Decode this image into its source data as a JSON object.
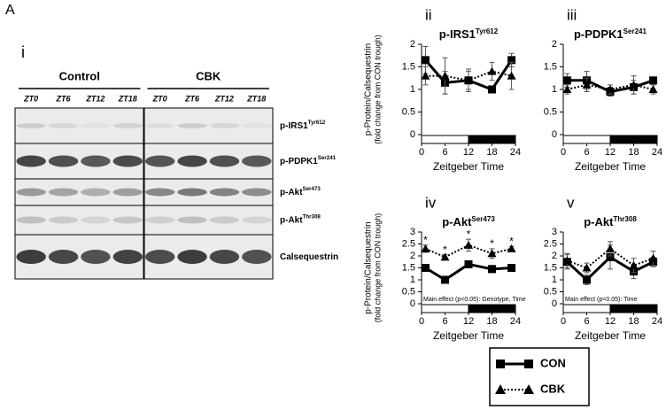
{
  "figure_label": "A",
  "blot": {
    "panel": "i",
    "groups": [
      "Control",
      "CBK"
    ],
    "lanes": [
      "ZT0",
      "ZT6",
      "ZT12",
      "ZT18",
      "ZT0",
      "ZT6",
      "ZT12",
      "ZT18"
    ],
    "rows": [
      {
        "protein": "p-IRS1",
        "site": "Tyr612"
      },
      {
        "protein": "p-PDPK1",
        "site": "Ser241"
      },
      {
        "protein": "p-Akt",
        "site": "Ser473"
      },
      {
        "protein": "p-Akt",
        "site": "Thr308"
      },
      {
        "protein": "Calsequestrin"
      }
    ]
  },
  "chart_data": [
    {
      "type": "line",
      "panel": "ii",
      "title": "p-IRS1",
      "title_site": "Tyr612",
      "ylabel": "p-Protein/Calsequestrin",
      "ylabel2": "(fold change from CON trough)",
      "xlabel": "Zeitgeber Time",
      "x": [
        1,
        6,
        12,
        18,
        23
      ],
      "xlim": [
        0,
        24
      ],
      "xticks": [
        0,
        6,
        12,
        18,
        24
      ],
      "ylim": [
        0,
        2
      ],
      "yticks": [
        0,
        0.5,
        1,
        1.5,
        2
      ],
      "dark_phase": [
        12,
        24
      ],
      "series": [
        {
          "name": "CON",
          "color": "#000000",
          "marker": "square",
          "dash": "solid",
          "values": [
            1.65,
            1.15,
            1.2,
            1.0,
            1.65
          ],
          "errors": [
            0.3,
            0.25,
            0.2,
            0.05,
            0.15
          ]
        },
        {
          "name": "CBK",
          "color": "#000000",
          "marker": "triangle",
          "dash": "dotted",
          "values": [
            1.3,
            1.3,
            1.2,
            1.4,
            1.3
          ],
          "errors": [
            0.2,
            0.4,
            0.25,
            0.2,
            0.3
          ]
        }
      ]
    },
    {
      "type": "line",
      "panel": "iii",
      "title": "p-PDPK1",
      "title_site": "Ser241",
      "xlabel": "Zeitgeber Time",
      "x": [
        1,
        6,
        12,
        18,
        23
      ],
      "xlim": [
        0,
        24
      ],
      "xticks": [
        0,
        6,
        12,
        18,
        24
      ],
      "ylim": [
        0,
        2
      ],
      "yticks": [
        0,
        0.5,
        1,
        1.5,
        2
      ],
      "dark_phase": [
        12,
        24
      ],
      "series": [
        {
          "name": "CON",
          "color": "#000000",
          "marker": "square",
          "dash": "solid",
          "values": [
            1.2,
            1.2,
            0.95,
            1.05,
            1.2
          ],
          "errors": [
            0.15,
            0.2,
            0.1,
            0.15,
            0.05
          ]
        },
        {
          "name": "CBK",
          "color": "#000000",
          "marker": "triangle",
          "dash": "dotted",
          "values": [
            1.0,
            1.1,
            1.0,
            1.1,
            1.0
          ],
          "errors": [
            0.1,
            0.15,
            0.1,
            0.2,
            0.1
          ]
        }
      ]
    },
    {
      "type": "line",
      "panel": "iv",
      "title": "p-Akt",
      "title_site": "Ser473",
      "ylabel": "p-Protein/Calsequestrin",
      "ylabel2": "(fold change from CON trough)",
      "xlabel": "Zeitgeber Time",
      "note": "Main effect (p<0.05): Genotype, Time",
      "significance": "*",
      "x": [
        1,
        6,
        12,
        18,
        23
      ],
      "xlim": [
        0,
        24
      ],
      "xticks": [
        0,
        6,
        12,
        18,
        24
      ],
      "ylim": [
        0,
        3
      ],
      "yticks": [
        0,
        0.5,
        1,
        1.5,
        2,
        2.5,
        3
      ],
      "dark_phase": [
        12,
        24
      ],
      "series": [
        {
          "name": "CON",
          "color": "#000000",
          "marker": "square",
          "dash": "solid",
          "values": [
            1.5,
            1.0,
            1.65,
            1.45,
            1.5
          ],
          "errors": [
            0.1,
            0.1,
            0.1,
            0.15,
            0.1
          ]
        },
        {
          "name": "CBK",
          "color": "#000000",
          "marker": "triangle",
          "dash": "dotted",
          "values": [
            2.3,
            1.95,
            2.45,
            2.1,
            2.3
          ],
          "errors": [
            0.15,
            0.1,
            0.25,
            0.2,
            0.1
          ]
        }
      ]
    },
    {
      "type": "line",
      "panel": "v",
      "title": "p-Akt",
      "title_site": "Thr308",
      "xlabel": "Zeitgeber Time",
      "note": "Main effect (p<0.05): Time",
      "x": [
        1,
        6,
        12,
        18,
        23
      ],
      "xlim": [
        0,
        24
      ],
      "xticks": [
        0,
        6,
        12,
        18,
        24
      ],
      "ylim": [
        0,
        3
      ],
      "yticks": [
        0,
        0.5,
        1,
        1.5,
        2,
        2.5,
        3
      ],
      "dark_phase": [
        12,
        24
      ],
      "series": [
        {
          "name": "CON",
          "color": "#000000",
          "marker": "square",
          "dash": "solid",
          "values": [
            1.75,
            1.0,
            1.95,
            1.35,
            1.75
          ],
          "errors": [
            0.3,
            0.2,
            0.5,
            0.3,
            0.2
          ]
        },
        {
          "name": "CBK",
          "color": "#000000",
          "marker": "triangle",
          "dash": "dotted",
          "values": [
            1.8,
            1.5,
            2.3,
            1.6,
            1.9
          ],
          "errors": [
            0.3,
            0.2,
            0.3,
            0.3,
            0.3
          ]
        }
      ]
    }
  ]
}
